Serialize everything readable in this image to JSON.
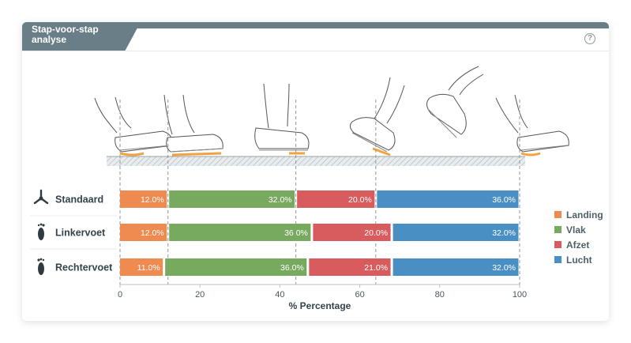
{
  "widget": {
    "title": "Stap-voor-stap analyse",
    "help_icon": "question-circle-icon"
  },
  "chart_data": {
    "type": "bar",
    "orientation": "horizontal",
    "stacked": true,
    "categories": [
      "Standaard",
      "Linkervoet",
      "Rechtervoet"
    ],
    "category_icons": [
      "tripod-icon",
      "left-foot-icon",
      "right-foot-icon"
    ],
    "series": [
      {
        "name": "Landing",
        "color": "#ef8a50",
        "values": [
          12.0,
          12.0,
          11.0
        ],
        "labels": [
          "12.0%",
          "12.0%",
          "11.0%"
        ]
      },
      {
        "name": "Vlak",
        "color": "#77a95f",
        "values": [
          32.0,
          36.0,
          36.0
        ],
        "labels": [
          "32.0%",
          "36 0%",
          "36.0%"
        ]
      },
      {
        "name": "Afzet",
        "color": "#d85b5e",
        "values": [
          20.0,
          20.0,
          21.0
        ],
        "labels": [
          "20.0%",
          "20.0%",
          "21.0%"
        ]
      },
      {
        "name": "Lucht",
        "color": "#4a8fc4",
        "values": [
          36.0,
          32.0,
          32.0
        ],
        "labels": [
          "36.0%",
          "32.0%",
          "32.0%"
        ]
      }
    ],
    "xlim": [
      0,
      100
    ],
    "xticks": [
      "0",
      "20",
      "40",
      "60",
      "80",
      "100"
    ],
    "xlabel": "% Percentage",
    "legend_position": "right",
    "phase_markers": [
      0,
      12,
      44,
      64,
      100
    ],
    "illustration": "running-shoe-gait-phases"
  }
}
